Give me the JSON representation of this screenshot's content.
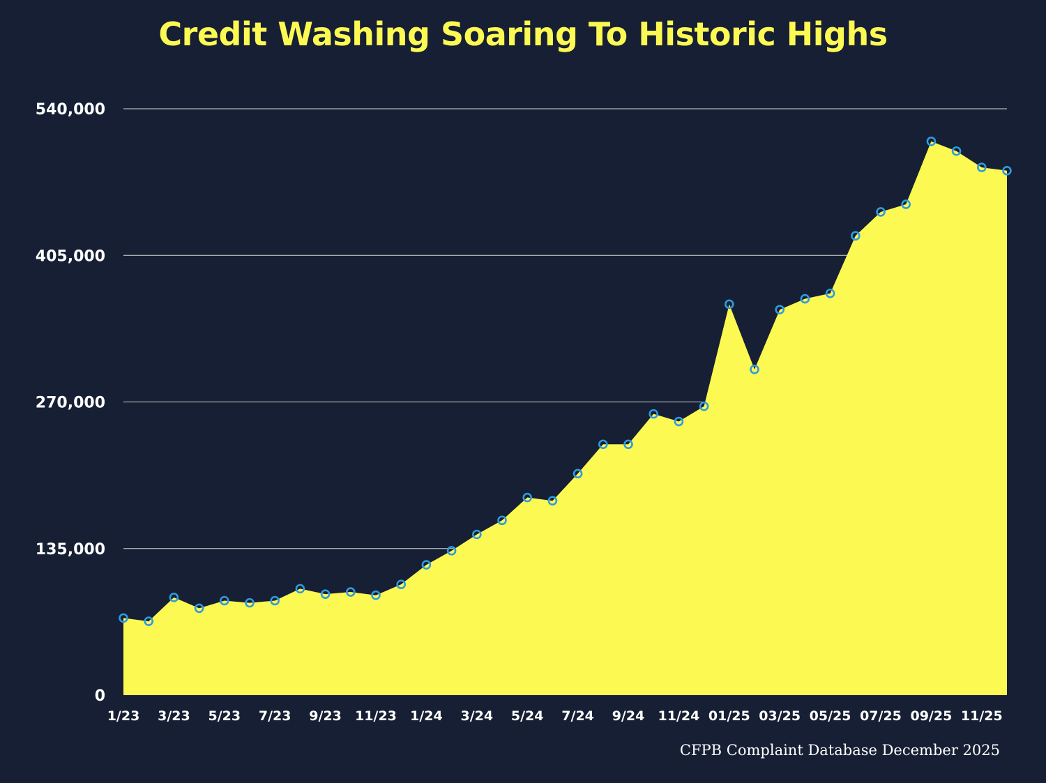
{
  "title": "Credit Washing Soaring To Historic Highs",
  "source": "CFPB Complaint Database December 2025",
  "colors": {
    "background": "#161f33",
    "area_fill": "#fdf953",
    "marker_stroke": "#2f9be0",
    "title": "#fdf953",
    "grid": "#d8d8d8"
  },
  "chart_data": {
    "type": "area",
    "title": "Credit Washing Soaring To Historic Highs",
    "xlabel": "",
    "ylabel": "",
    "ylim": [
      0,
      540000
    ],
    "yticks": [
      0,
      135000,
      270000,
      405000,
      540000
    ],
    "ytick_labels": [
      "0",
      "135,000",
      "270,000",
      "405,000",
      "540,000"
    ],
    "grid": true,
    "markers": "hollow circle",
    "x": [
      "1/23",
      "2/23",
      "3/23",
      "4/23",
      "5/23",
      "6/23",
      "7/23",
      "8/23",
      "9/23",
      "10/23",
      "11/23",
      "12/23",
      "1/24",
      "2/24",
      "3/24",
      "4/24",
      "5/24",
      "6/24",
      "7/24",
      "8/24",
      "9/24",
      "10/24",
      "11/24",
      "12/24",
      "01/25",
      "02/25",
      "03/25",
      "04/25",
      "05/25",
      "06/25",
      "07/25",
      "08/25",
      "09/25",
      "10/25",
      "11/25",
      "12/25"
    ],
    "xtick_labels": [
      {
        "index": 0,
        "label": "1/23"
      },
      {
        "index": 2,
        "label": "3/23"
      },
      {
        "index": 4,
        "label": "5/23"
      },
      {
        "index": 6,
        "label": "7/23"
      },
      {
        "index": 8,
        "label": "9/23"
      },
      {
        "index": 10,
        "label": "11/23"
      },
      {
        "index": 12,
        "label": "1/24"
      },
      {
        "index": 14,
        "label": "3/24"
      },
      {
        "index": 16,
        "label": "5/24"
      },
      {
        "index": 18,
        "label": "7/24"
      },
      {
        "index": 20,
        "label": "9/24"
      },
      {
        "index": 22,
        "label": "11/24"
      },
      {
        "index": 24,
        "label": "01/25"
      },
      {
        "index": 26,
        "label": "03/25"
      },
      {
        "index": 28,
        "label": "05/25"
      },
      {
        "index": 30,
        "label": "07/25"
      },
      {
        "index": 32,
        "label": "09/25"
      },
      {
        "index": 34,
        "label": "11/25"
      }
    ],
    "series": [
      {
        "values": [
          71000,
          68000,
          90000,
          80000,
          87000,
          85000,
          87000,
          98000,
          93000,
          95000,
          92000,
          102000,
          120000,
          133000,
          148000,
          161000,
          182000,
          179000,
          204000,
          231000,
          231000,
          259000,
          252000,
          266000,
          360000,
          300000,
          355000,
          365000,
          370000,
          423000,
          445000,
          452000,
          510000,
          501000,
          486000,
          483000
        ]
      }
    ]
  }
}
